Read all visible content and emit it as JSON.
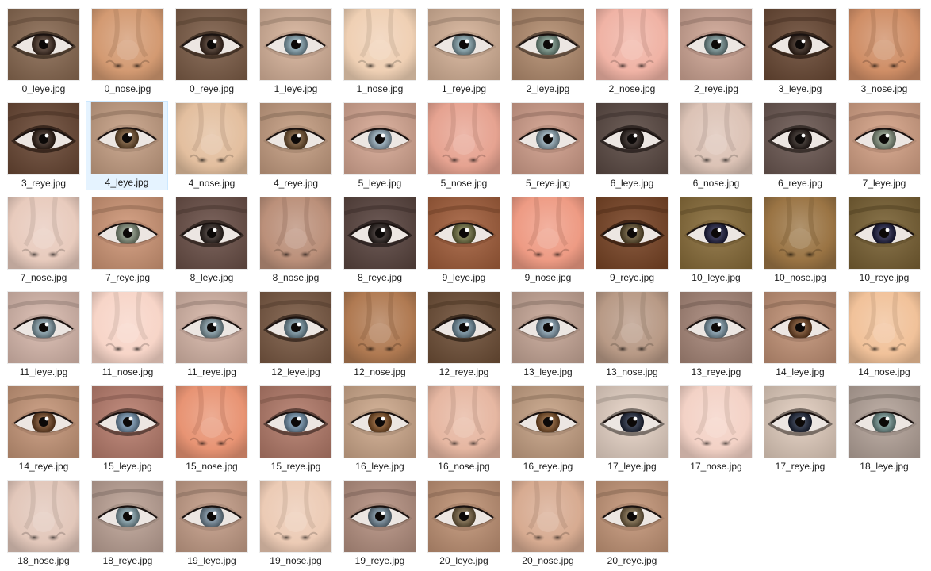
{
  "files": [
    {
      "name": "0_leye.jpg",
      "kind": "eye",
      "skin": "#8a6a52",
      "iris": "#3e2a1e",
      "dark": true
    },
    {
      "name": "0_nose.jpg",
      "kind": "nose",
      "skin": "#d39a72"
    },
    {
      "name": "0_reye.jpg",
      "kind": "eye",
      "skin": "#7e5e48",
      "iris": "#3a271b",
      "dark": true
    },
    {
      "name": "1_leye.jpg",
      "kind": "eye",
      "skin": "#d9b59c",
      "iris": "#7d9aa6"
    },
    {
      "name": "1_nose.jpg",
      "kind": "nose",
      "skin": "#efd0b4"
    },
    {
      "name": "1_reye.jpg",
      "kind": "eye",
      "skin": "#d8b49a",
      "iris": "#7f9ca4"
    },
    {
      "name": "2_leye.jpg",
      "kind": "eye",
      "skin": "#b58e70",
      "iris": "#6f8a7e",
      "dark": true
    },
    {
      "name": "2_nose.jpg",
      "kind": "nose",
      "skin": "#f0b3a5"
    },
    {
      "name": "2_reye.jpg",
      "kind": "eye",
      "skin": "#d1a796",
      "iris": "#70898a"
    },
    {
      "name": "3_leye.jpg",
      "kind": "eye",
      "skin": "#6b4a36",
      "iris": "#2e1d14",
      "dark": true
    },
    {
      "name": "3_nose.jpg",
      "kind": "nose",
      "skin": "#cf8e66"
    },
    {
      "name": "3_reye.jpg",
      "kind": "eye",
      "skin": "#6a4835",
      "iris": "#2c1b12",
      "dark": true
    },
    {
      "name": "4_leye.jpg",
      "kind": "eye",
      "skin": "#c9a286",
      "iris": "#6a4a2a",
      "selected": true
    },
    {
      "name": "4_nose.jpg",
      "kind": "nose",
      "skin": "#e3bf9f"
    },
    {
      "name": "4_reye.jpg",
      "kind": "eye",
      "skin": "#c79f83",
      "iris": "#6b4b2b"
    },
    {
      "name": "5_leye.jpg",
      "kind": "eye",
      "skin": "#d9aa95",
      "iris": "#8fa5b4"
    },
    {
      "name": "5_nose.jpg",
      "kind": "nose",
      "skin": "#e6a391"
    },
    {
      "name": "5_reye.jpg",
      "kind": "eye",
      "skin": "#d3a08c",
      "iris": "#8aa1ae"
    },
    {
      "name": "6_leye.jpg",
      "kind": "eye",
      "skin": "#5b4a44",
      "iris": "#241a16",
      "dark": true
    },
    {
      "name": "6_nose.jpg",
      "kind": "nose",
      "skin": "#dcc3b6"
    },
    {
      "name": "6_reye.jpg",
      "kind": "eye",
      "skin": "#6b5852",
      "iris": "#231915",
      "dark": true
    },
    {
      "name": "7_leye.jpg",
      "kind": "eye",
      "skin": "#d7a387",
      "iris": "#7e8a78"
    },
    {
      "name": "7_nose.jpg",
      "kind": "nose",
      "skin": "#e8cbbd"
    },
    {
      "name": "7_reye.jpg",
      "kind": "eye",
      "skin": "#d29878",
      "iris": "#7b8774"
    },
    {
      "name": "8_leye.jpg",
      "kind": "eye",
      "skin": "#6b5048",
      "iris": "#2a201c",
      "dark": true
    },
    {
      "name": "8_nose.jpg",
      "kind": "nose",
      "skin": "#bb907a"
    },
    {
      "name": "8_reye.jpg",
      "kind": "eye",
      "skin": "#5a4540",
      "iris": "#241b18",
      "dark": true
    },
    {
      "name": "9_leye.jpg",
      "kind": "eye",
      "skin": "#a45f3c",
      "iris": "#6a6a3c"
    },
    {
      "name": "9_nose.jpg",
      "kind": "nose",
      "skin": "#ee9b84"
    },
    {
      "name": "9_reye.jpg",
      "kind": "eye",
      "skin": "#7a4526",
      "iris": "#5a4a2a",
      "dark": true
    },
    {
      "name": "10_leye.jpg",
      "kind": "eye",
      "skin": "#8a6e3a",
      "iris": "#1a1a3a"
    },
    {
      "name": "10_nose.jpg",
      "kind": "nose",
      "skin": "#9a7444"
    },
    {
      "name": "10_reye.jpg",
      "kind": "eye",
      "skin": "#7a6234",
      "iris": "#18183a"
    },
    {
      "name": "11_leye.jpg",
      "kind": "eye",
      "skin": "#dcbcb0",
      "iris": "#7d95a0"
    },
    {
      "name": "11_nose.jpg",
      "kind": "nose",
      "skin": "#f7d5c8"
    },
    {
      "name": "11_reye.jpg",
      "kind": "eye",
      "skin": "#d9b8aa",
      "iris": "#7c939c"
    },
    {
      "name": "12_leye.jpg",
      "kind": "eye",
      "skin": "#7b5a44",
      "iris": "#6f8a98",
      "dark": true
    },
    {
      "name": "12_nose.jpg",
      "kind": "nose",
      "skin": "#b07a52"
    },
    {
      "name": "12_reye.jpg",
      "kind": "eye",
      "skin": "#705038",
      "iris": "#6c8796",
      "dark": true
    },
    {
      "name": "13_leye.jpg",
      "kind": "eye",
      "skin": "#c8a898",
      "iris": "#7f97a7"
    },
    {
      "name": "13_nose.jpg",
      "kind": "nose",
      "skin": "#b89a86"
    },
    {
      "name": "13_reye.jpg",
      "kind": "eye",
      "skin": "#a9887a",
      "iris": "#7a93a2"
    },
    {
      "name": "14_leye.jpg",
      "kind": "eye",
      "skin": "#c49478",
      "iris": "#6b3f1e"
    },
    {
      "name": "14_nose.jpg",
      "kind": "nose",
      "skin": "#f1c29a"
    },
    {
      "name": "14_reye.jpg",
      "kind": "eye",
      "skin": "#c8987a",
      "iris": "#6a3e1d"
    },
    {
      "name": "15_leye.jpg",
      "kind": "eye",
      "skin": "#bb7f6f",
      "iris": "#6d8aa5",
      "dark": true
    },
    {
      "name": "15_nose.jpg",
      "kind": "nose",
      "skin": "#e89474"
    },
    {
      "name": "15_reye.jpg",
      "kind": "eye",
      "skin": "#b47b6a",
      "iris": "#6b89a2",
      "dark": true
    },
    {
      "name": "16_leye.jpg",
      "kind": "eye",
      "skin": "#d0ab8d",
      "iris": "#7a4a20"
    },
    {
      "name": "16_nose.jpg",
      "kind": "nose",
      "skin": "#e6b7a2"
    },
    {
      "name": "16_reye.jpg",
      "kind": "eye",
      "skin": "#c9a486",
      "iris": "#784a22"
    },
    {
      "name": "17_leye.jpg",
      "kind": "eye",
      "skin": "#e9d6c8",
      "iris": "#1c2438",
      "dark": true
    },
    {
      "name": "17_nose.jpg",
      "kind": "nose",
      "skin": "#f3d2c6"
    },
    {
      "name": "17_reye.jpg",
      "kind": "eye",
      "skin": "#e4cfc0",
      "iris": "#1a2236",
      "dark": true
    },
    {
      "name": "18_leye.jpg",
      "kind": "eye",
      "skin": "#b7a69c",
      "iris": "#6b8b88"
    },
    {
      "name": "18_nose.jpg",
      "kind": "nose",
      "skin": "#e2c7ba"
    },
    {
      "name": "18_reye.jpg",
      "kind": "eye",
      "skin": "#bfa598",
      "iris": "#7c98a1"
    },
    {
      "name": "19_leye.jpg",
      "kind": "eye",
      "skin": "#c7a08a",
      "iris": "#6f8494"
    },
    {
      "name": "19_nose.jpg",
      "kind": "nose",
      "skin": "#eccbb5"
    },
    {
      "name": "19_reye.jpg",
      "kind": "eye",
      "skin": "#b79282",
      "iris": "#6c8190"
    },
    {
      "name": "20_leye.jpg",
      "kind": "eye",
      "skin": "#c29476",
      "iris": "#6e5a3c"
    },
    {
      "name": "20_nose.jpg",
      "kind": "nose",
      "skin": "#d7ab91"
    },
    {
      "name": "20_reye.jpg",
      "kind": "eye",
      "skin": "#c7987a",
      "iris": "#6f5b3d"
    }
  ]
}
